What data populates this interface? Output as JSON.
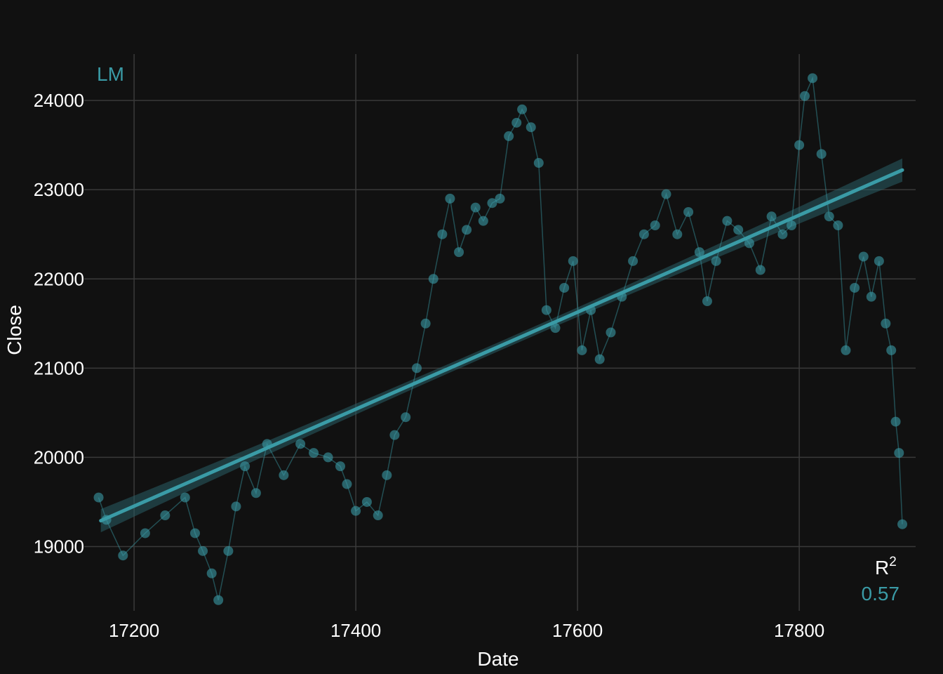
{
  "chart_data": {
    "type": "scatter",
    "title": "",
    "xlabel": "Date",
    "ylabel": "Close",
    "xlim": [
      17155,
      17905
    ],
    "ylim": [
      18280,
      24520
    ],
    "x_ticks": [
      17200,
      17400,
      17600,
      17800
    ],
    "y_ticks": [
      19000,
      20000,
      21000,
      22000,
      23000,
      24000
    ],
    "grid": true,
    "colors": {
      "background": "#111111",
      "grid": "#3a3a3a",
      "points": "#3a9ba6",
      "fit_line": "#3a9ba6",
      "band": "#2a5f66"
    },
    "annotations": {
      "tag": "LM",
      "r2_label": "R",
      "r2_sup": "2",
      "r2_value": "0.57"
    },
    "fit": {
      "method": "lm",
      "x": [
        17170,
        17893
      ],
      "y": [
        19290,
        23220
      ],
      "band_halfwidth_ends": 130,
      "band_halfwidth_mid": 50
    },
    "series": [
      {
        "x": [
          17168,
          17175,
          17190,
          17210,
          17228,
          17246,
          17255,
          17262,
          17270,
          17276,
          17285,
          17292,
          17300,
          17310,
          17320,
          17335,
          17350,
          17362,
          17375,
          17386,
          17392,
          17400,
          17410,
          17420,
          17428,
          17435,
          17445,
          17455,
          17463,
          17470,
          17478,
          17485,
          17493,
          17500,
          17508,
          17515,
          17523,
          17530,
          17538,
          17545,
          17550,
          17558,
          17565,
          17572,
          17580,
          17588,
          17596,
          17604,
          17612,
          17620,
          17630,
          17640,
          17650,
          17660,
          17670,
          17680,
          17690,
          17700,
          17710,
          17717,
          17725,
          17735,
          17745,
          17755,
          17765,
          17775,
          17785,
          17793,
          17800,
          17805,
          17812,
          17820,
          17827,
          17835,
          17842,
          17850,
          17858,
          17865,
          17872,
          17878,
          17883,
          17887,
          17890,
          17893
        ],
        "y": [
          19550,
          19300,
          18900,
          19150,
          19350,
          19550,
          19150,
          18950,
          18700,
          18400,
          18950,
          19450,
          19900,
          19600,
          20150,
          19800,
          20150,
          20050,
          20000,
          19900,
          19700,
          19400,
          19500,
          19350,
          19800,
          20250,
          20450,
          21000,
          21500,
          22000,
          22500,
          22900,
          22300,
          22550,
          22800,
          22650,
          22850,
          22900,
          23600,
          23750,
          23900,
          23700,
          23300,
          21650,
          21450,
          21900,
          22200,
          21200,
          21650,
          21100,
          21400,
          21800,
          22200,
          22500,
          22600,
          22950,
          22500,
          22750,
          22300,
          21750,
          22200,
          22650,
          22550,
          22400,
          22100,
          22700,
          22500,
          22600,
          23500,
          24050,
          24250,
          23400,
          22700,
          22600,
          21200,
          21900,
          22250,
          21800,
          22200,
          21500,
          21200,
          20400,
          20050,
          19250
        ]
      }
    ]
  }
}
